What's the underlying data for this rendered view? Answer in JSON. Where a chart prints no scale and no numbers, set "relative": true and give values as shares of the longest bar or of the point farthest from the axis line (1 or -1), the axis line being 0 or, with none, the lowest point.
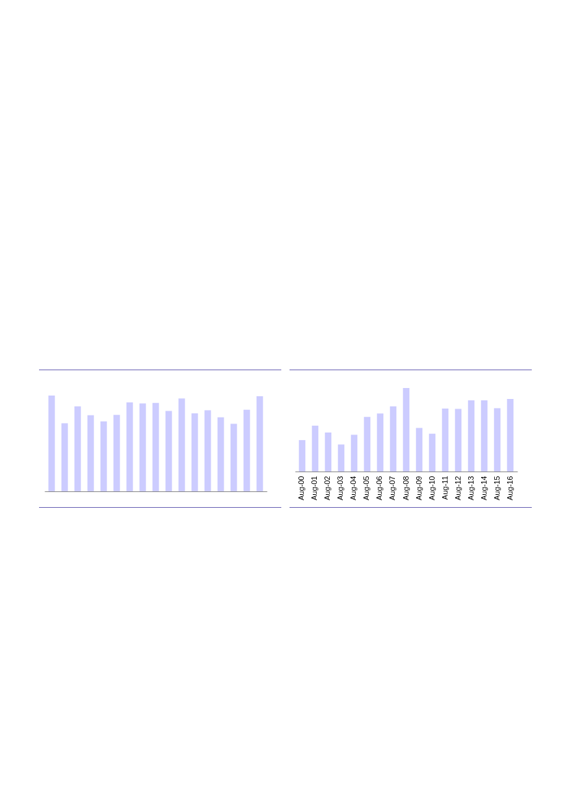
{
  "chart_data": [
    {
      "type": "bar",
      "relative": true,
      "categories": [
        null,
        null,
        null,
        null,
        null,
        null,
        null,
        null,
        null,
        null,
        null,
        null,
        null,
        null,
        null,
        null,
        null
      ],
      "tick_labels": false,
      "series": [
        {
          "color": "#ccccff",
          "values": [
            1,
            0.711,
            0.887,
            0.795,
            0.73,
            0.798,
            0.928,
            0.918,
            0.923,
            0.839,
            0.969,
            0.814,
            0.846,
            0.773,
            0.706,
            0.851,
            0.993
          ]
        }
      ]
    },
    {
      "type": "bar",
      "relative": true,
      "categories": [
        "Aug-00",
        "Aug-01",
        "Aug-02",
        "Aug-03",
        "Aug-04",
        "Aug-05",
        "Aug-06",
        "Aug-07",
        "Aug-08",
        "Aug-09",
        "Aug-10",
        "Aug-11",
        "Aug-12",
        "Aug-13",
        "Aug-14",
        "Aug-15",
        "Aug-16"
      ],
      "tick_labels": "x",
      "series": [
        {
          "color": "#ccccff",
          "values": [
            0.376,
            0.549,
            0.467,
            0.324,
            0.44,
            0.654,
            0.695,
            0.78,
            1,
            0.522,
            0.453,
            0.755,
            0.75,
            0.852,
            0.852,
            0.758,
            0.868
          ]
        }
      ]
    }
  ]
}
